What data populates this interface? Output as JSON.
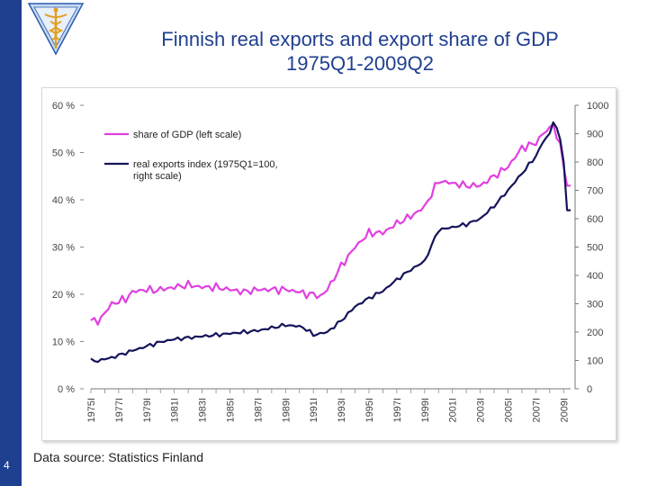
{
  "slide": {
    "number": "4",
    "title_line1": "Finnish real exports and export share of GDP",
    "title_line2": "1975Q1-2009Q2",
    "source": "Data source: Statistics Finland",
    "logo_icon": "caduceus-icon"
  },
  "colors": {
    "sidebar": "#1f3f8f",
    "title": "#1f3f8f",
    "share_series": "#e040e0",
    "exports_series": "#14145a"
  },
  "chart_data": {
    "type": "line",
    "title": "",
    "xlabel": "",
    "ylabel_left": "",
    "ylabel_right": "",
    "x_range": [
      "1975Q1",
      "2009Q2"
    ],
    "x_tick_labels": [
      "1975I",
      "1977I",
      "1979I",
      "1981I",
      "1983I",
      "1985I",
      "1987I",
      "1989I",
      "1991I",
      "1993I",
      "1995I",
      "1997I",
      "1999I",
      "2001I",
      "2003I",
      "2005I",
      "2007I",
      "2009I"
    ],
    "y_left": {
      "ticks": [
        "0 %",
        "10 %",
        "20 %",
        "30 %",
        "40 %",
        "50 %",
        "60 %"
      ],
      "min": 0,
      "max": 60
    },
    "y_right": {
      "ticks": [
        "0",
        "100",
        "200",
        "300",
        "400",
        "500",
        "600",
        "700",
        "800",
        "900",
        "1000"
      ],
      "min": 0,
      "max": 1000
    },
    "legend_position": "top-left",
    "series": [
      {
        "name": "share of GDP (left scale)",
        "axis": "left",
        "x": [
          1975.0,
          1975.5,
          1976.0,
          1976.5,
          1977.0,
          1977.5,
          1978.0,
          1978.5,
          1979.0,
          1979.5,
          1980.0,
          1981.0,
          1982.0,
          1983.0,
          1984.0,
          1985.0,
          1986.0,
          1987.0,
          1988.0,
          1989.0,
          1990.0,
          1990.5,
          1991.0,
          1991.5,
          1992.0,
          1993.0,
          1994.0,
          1995.0,
          1996.0,
          1997.0,
          1998.0,
          1999.0,
          2000.0,
          2001.0,
          2002.0,
          2003.0,
          2004.0,
          2005.0,
          2006.0,
          2007.0,
          2007.5,
          2008.0,
          2008.25,
          2008.5,
          2008.75,
          2009.0,
          2009.25,
          2009.5
        ],
        "values": [
          14.5,
          14.2,
          16.0,
          18.0,
          18.5,
          19.0,
          20.5,
          20.8,
          21.0,
          20.8,
          21.0,
          21.5,
          22.0,
          21.5,
          21.5,
          21.0,
          20.5,
          21.0,
          21.0,
          21.0,
          20.5,
          20.0,
          20.0,
          19.5,
          21.0,
          26.0,
          30.0,
          33.0,
          33.0,
          35.0,
          36.5,
          38.5,
          44.0,
          43.5,
          43.0,
          43.0,
          45.0,
          47.0,
          51.0,
          52.0,
          54.0,
          55.0,
          56.0,
          53.0,
          52.0,
          47.0,
          43.0,
          43.0
        ]
      },
      {
        "name": "real exports index (1975Q1=100, right scale)",
        "axis": "right",
        "x": [
          1975.0,
          1975.5,
          1976.0,
          1976.5,
          1977.0,
          1978.0,
          1979.0,
          1980.0,
          1981.0,
          1982.0,
          1983.0,
          1984.0,
          1985.0,
          1986.0,
          1987.0,
          1988.0,
          1989.0,
          1990.0,
          1990.5,
          1991.0,
          1991.5,
          1992.0,
          1993.0,
          1994.0,
          1995.0,
          1996.0,
          1997.0,
          1998.0,
          1999.0,
          2000.0,
          2001.0,
          2002.0,
          2003.0,
          2004.0,
          2005.0,
          2006.0,
          2007.0,
          2007.5,
          2008.0,
          2008.25,
          2008.5,
          2008.75,
          2009.0,
          2009.25,
          2009.5
        ],
        "values": [
          100,
          98,
          105,
          110,
          118,
          135,
          150,
          165,
          175,
          180,
          185,
          190,
          195,
          200,
          205,
          215,
          225,
          220,
          210,
          190,
          195,
          200,
          240,
          290,
          320,
          345,
          385,
          420,
          450,
          560,
          570,
          580,
          600,
          645,
          700,
          760,
          820,
          870,
          900,
          940,
          920,
          880,
          800,
          630,
          630
        ]
      }
    ]
  }
}
